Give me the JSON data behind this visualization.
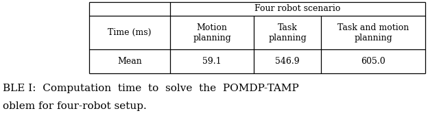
{
  "header_span": "Four robot scenario",
  "col0_header": "Time (ms)",
  "col_headers": [
    "Motion\nplanning",
    "Task\nplanning",
    "Task and motion\nplanning"
  ],
  "row_label": "Mean",
  "row_values": [
    "59.1",
    "546.9",
    "605.0"
  ],
  "bg_color": "#ffffff",
  "text_color": "#000000",
  "caption_line1": "BLE I:  Computation  time  to  solve  the  POMDP-TAMP",
  "caption_line2": "oblem for four-robot setup.",
  "font_size": 9.0,
  "caption_font_size": 11.0
}
